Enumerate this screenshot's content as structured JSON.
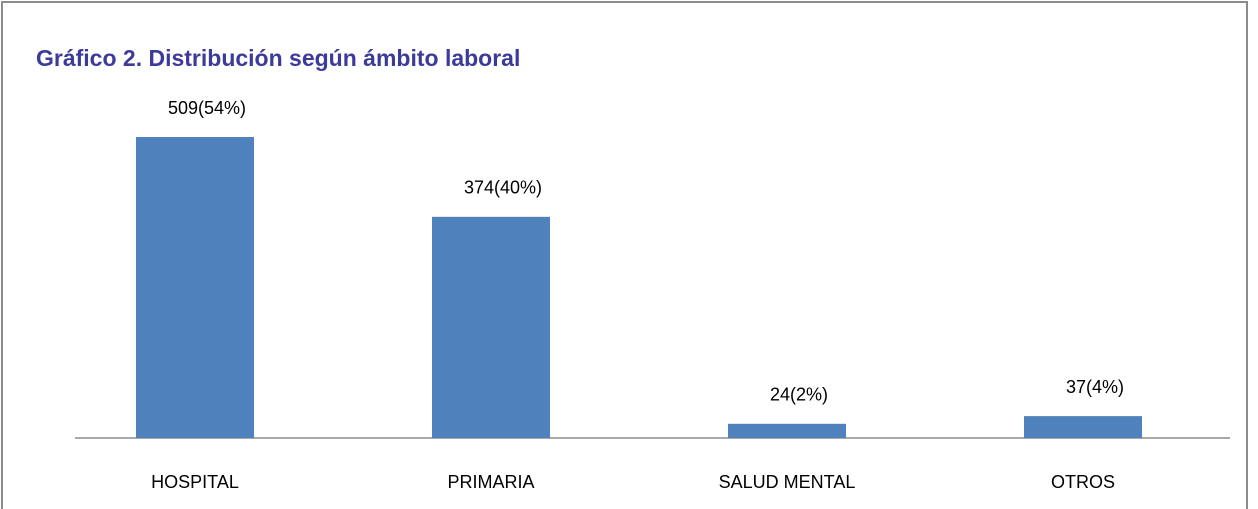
{
  "chart_data": {
    "type": "bar",
    "title": "Gráfico 2. Distribución según ámbito laboral",
    "categories": [
      "HOSPITAL",
      "PRIMARIA",
      "SALUD MENTAL",
      "OTROS"
    ],
    "values": [
      509,
      374,
      24,
      37
    ],
    "value_labels": [
      "509(54%)",
      "374(40%)",
      "24(2%)",
      "37(4%)"
    ],
    "color": "#4f81bd"
  }
}
